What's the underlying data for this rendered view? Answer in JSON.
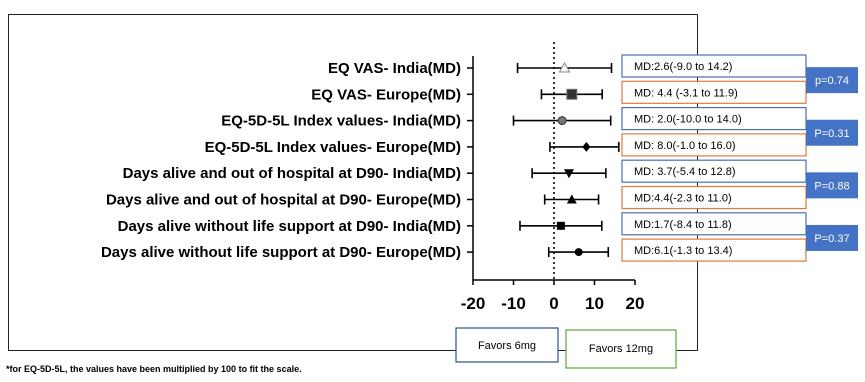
{
  "chart_data": {
    "type": "forest",
    "xlim": [
      -20,
      20
    ],
    "ticks": [
      -20,
      -10,
      0,
      10,
      20
    ],
    "rows": [
      {
        "label": "EQ VAS- India(MD)",
        "est": 2.6,
        "lo": -9.0,
        "hi": 14.2,
        "marker": "triangle-open",
        "ci_text": "MD:2.6(-9.0 to 14.2)"
      },
      {
        "label": "EQ VAS- Europe(MD)",
        "est": 4.4,
        "lo": -3.1,
        "hi": 11.9,
        "marker": "square-big",
        "ci_text": "MD: 4.4 (-3.1 to 11.9)"
      },
      {
        "label": "EQ-5D-5L Index values- India(MD)",
        "est": 2.0,
        "lo": -10.0,
        "hi": 14.0,
        "marker": "circle-gray",
        "ci_text": "MD: 2.0(-10.0 to 14.0)"
      },
      {
        "label": "EQ-5D-5L Index values- Europe(MD)",
        "est": 8.0,
        "lo": -1.0,
        "hi": 16.0,
        "marker": "diamond",
        "ci_text": "MD: 8.0(-1.0 to 16.0)"
      },
      {
        "label": "Days alive and out of hospital at D90- India(MD)",
        "est": 3.7,
        "lo": -5.4,
        "hi": 12.8,
        "marker": "triangle-down",
        "ci_text": "MD: 3.7(-5.4 to 12.8)"
      },
      {
        "label": "Days alive and out of hospital at D90- Europe(MD)",
        "est": 4.4,
        "lo": -2.3,
        "hi": 11.0,
        "marker": "triangle-up",
        "ci_text": "MD:4.4(-2.3 to 11.0)"
      },
      {
        "label": "Days alive without life support at D90- India(MD)",
        "est": 1.7,
        "lo": -8.4,
        "hi": 11.8,
        "marker": "square",
        "ci_text": "MD:1.7(-8.4 to 11.8)"
      },
      {
        "label": "Days alive without life support at D90- Europe(MD)",
        "est": 6.1,
        "lo": -1.3,
        "hi": 13.4,
        "marker": "circle",
        "ci_text": "MD:6.1(-1.3 to 13.4)"
      }
    ],
    "p_values": [
      "p=0.74",
      "P=0.31",
      "P=0.88",
      "P=0.37"
    ],
    "favors_left": "Favors 6mg",
    "favors_right": "Favors 12mg",
    "footnote": "*for EQ-5D-5L, the values have been multiplied by 100 to fit the scale.",
    "colors": {
      "india_box_border": "#4a6fb0",
      "europe_box_border": "#e07a3a",
      "pvalue_fill": "#4472c4",
      "favors_left_border": "#2f4f8f",
      "favors_right_border": "#5aa63a",
      "ink": "#000000"
    }
  }
}
